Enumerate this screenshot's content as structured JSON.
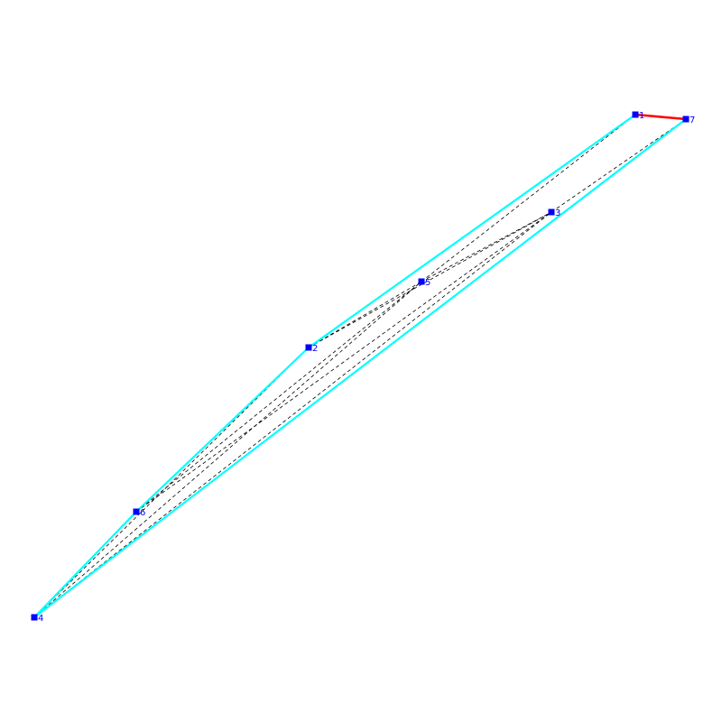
{
  "colors": {
    "hull": "#00ffff",
    "highlight": "#ff0000",
    "diagonal": "#000000",
    "vertex": "#0000ff",
    "label": "#0000ff",
    "background": "#ffffff"
  },
  "vertices": [
    {
      "id": "v1",
      "label": "1"
    },
    {
      "id": "v2",
      "label": "2"
    },
    {
      "id": "v3",
      "label": "3"
    },
    {
      "id": "v4",
      "label": "4"
    },
    {
      "id": "v5",
      "label": "5"
    },
    {
      "id": "v6",
      "label": "6"
    },
    {
      "id": "v7",
      "label": "7"
    }
  ],
  "hull_edges": [
    [
      "v1",
      "v2"
    ],
    [
      "v2",
      "v6"
    ],
    [
      "v6",
      "v4"
    ],
    [
      "v4",
      "v7"
    ]
  ],
  "highlight_edges": [
    [
      "v1",
      "v7"
    ]
  ],
  "diagonal_edges": [
    [
      "v2",
      "v5"
    ],
    [
      "v5",
      "v3"
    ],
    [
      "v3",
      "v7"
    ],
    [
      "v2",
      "v3"
    ],
    [
      "v6",
      "v2b"
    ],
    [
      "v6",
      "v5"
    ],
    [
      "v6",
      "v3"
    ],
    [
      "v4",
      "v2"
    ],
    [
      "v4",
      "v5"
    ],
    [
      "v4",
      "v3"
    ],
    [
      "v5",
      "v1"
    ]
  ]
}
